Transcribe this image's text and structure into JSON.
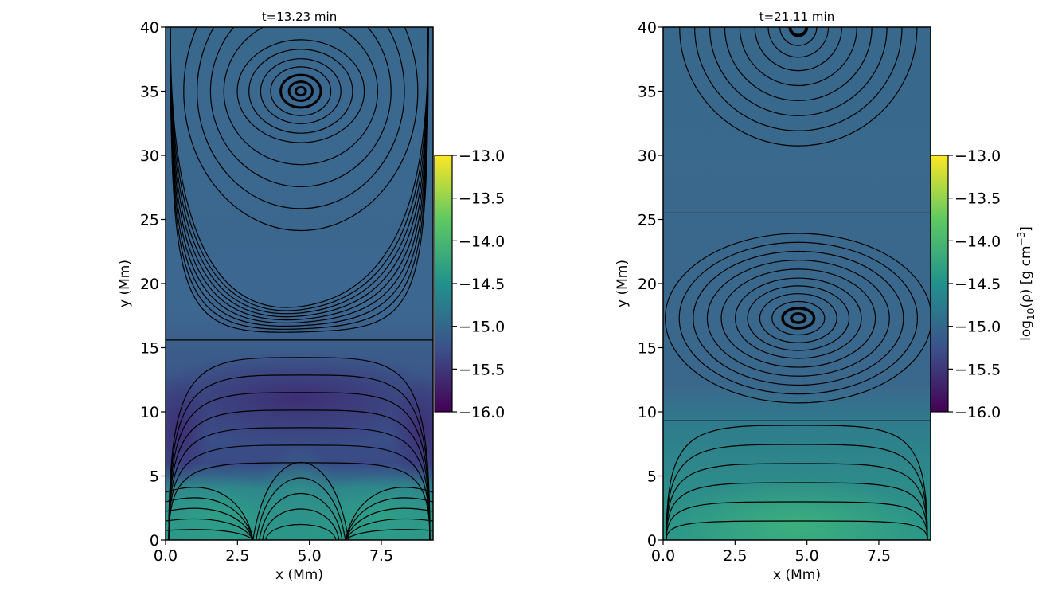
{
  "chart_data": [
    {
      "type": "heatmap",
      "title": "t=13.23 min",
      "xlabel": "x (Mm)",
      "ylabel": "y (Mm)",
      "xlim": [
        0,
        9.3
      ],
      "ylim": [
        0,
        40
      ],
      "xticks": [
        "0.0",
        "2.5",
        "5.0",
        "7.5"
      ],
      "xtick_values": [
        0,
        2.5,
        5.0,
        7.5
      ],
      "yticks": [
        "0",
        "5",
        "10",
        "15",
        "20",
        "25",
        "30",
        "35",
        "40"
      ],
      "ytick_values": [
        0,
        5,
        10,
        15,
        20,
        25,
        30,
        35,
        40
      ],
      "vortex_centers": [
        [
          4.7,
          35.0
        ]
      ],
      "separatrix_y": 15.6,
      "colorbar": {
        "min": -16.0,
        "max": -13.0,
        "ticks": [
          "−13.0",
          "−13.5",
          "−14.0",
          "−14.5",
          "−15.0",
          "−15.5",
          "−16.0"
        ],
        "tick_values": [
          -13.0,
          -13.5,
          -14.0,
          -14.5,
          -15.0,
          -15.5,
          -16.0
        ],
        "label": ""
      }
    },
    {
      "type": "heatmap",
      "title": "t=21.11 min",
      "xlabel": "x (Mm)",
      "ylabel": "y (Mm)",
      "xlim": [
        0,
        9.3
      ],
      "ylim": [
        0,
        40
      ],
      "xticks": [
        "0.0",
        "2.5",
        "5.0",
        "7.5"
      ],
      "xtick_values": [
        0,
        2.5,
        5.0,
        7.5
      ],
      "yticks": [
        "0",
        "5",
        "10",
        "15",
        "20",
        "25",
        "30",
        "35",
        "40"
      ],
      "ytick_values": [
        0,
        5,
        10,
        15,
        20,
        25,
        30,
        35,
        40
      ],
      "vortex_centers": [
        [
          4.7,
          17.3
        ],
        [
          4.7,
          40.0
        ]
      ],
      "separatrix_y": [
        25.5,
        9.3
      ],
      "colorbar": {
        "min": -16.0,
        "max": -13.0,
        "ticks": [
          "−13.0",
          "−13.5",
          "−14.0",
          "−14.5",
          "−15.0",
          "−15.5",
          "−16.0"
        ],
        "tick_values": [
          -13.0,
          -13.5,
          -14.0,
          -14.5,
          -15.0,
          -15.5,
          -16.0
        ],
        "label_prefix": "log",
        "label_sub": "10",
        "label_mid": "(ρ) [g cm",
        "label_sup": "−3",
        "label_suffix": "]"
      }
    }
  ],
  "colors": {
    "background": "#3b6a8c",
    "dark": "#3a2a6e",
    "bright": "#2a9a8a",
    "cmap": [
      "#440154",
      "#3b528b",
      "#21918c",
      "#5ec962",
      "#fde725"
    ]
  }
}
